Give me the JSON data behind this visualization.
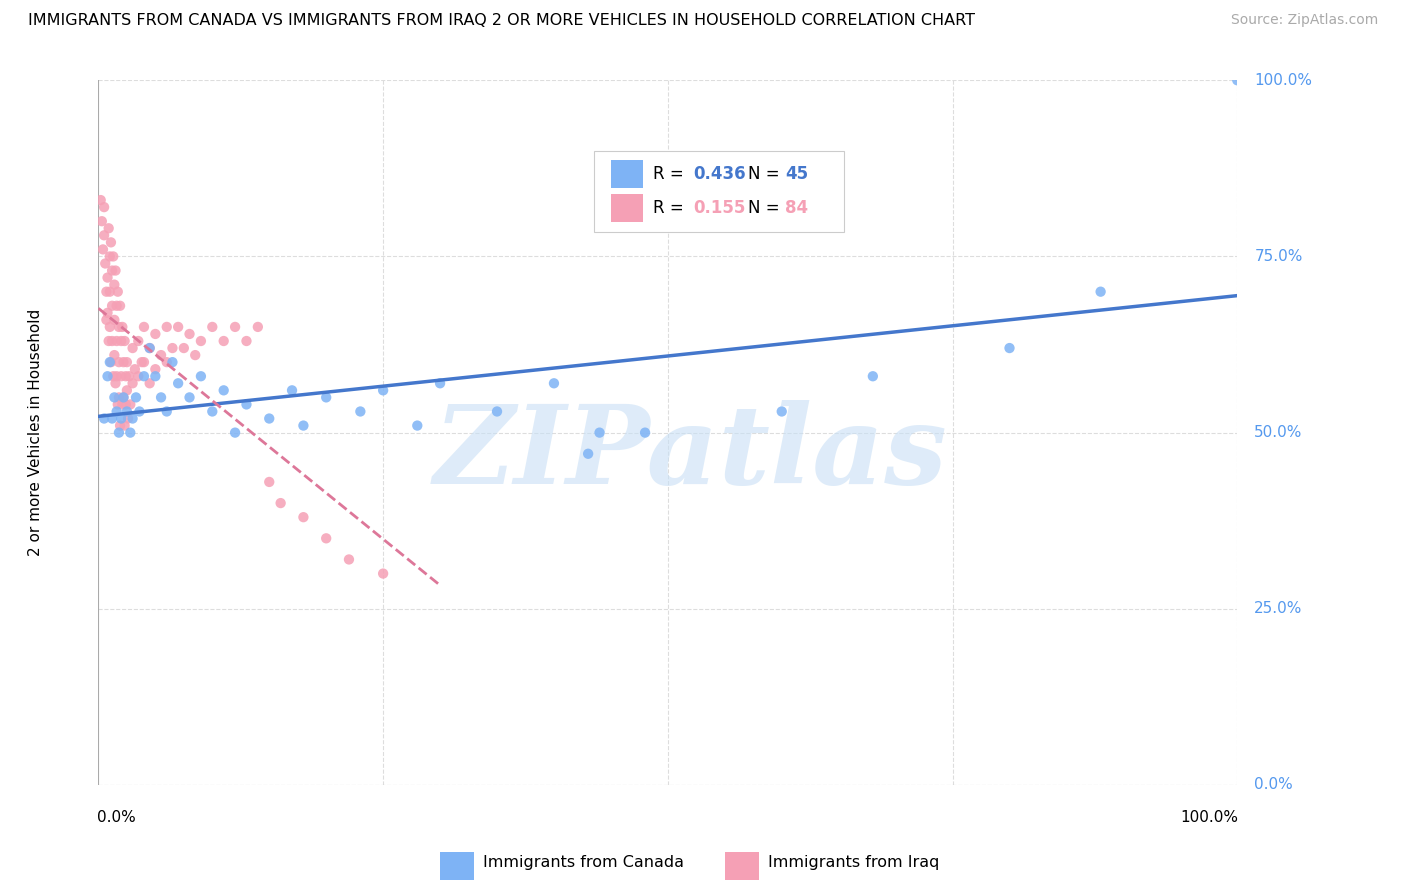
{
  "title": "IMMIGRANTS FROM CANADA VS IMMIGRANTS FROM IRAQ 2 OR MORE VEHICLES IN HOUSEHOLD CORRELATION CHART",
  "source": "Source: ZipAtlas.com",
  "ylabel": "2 or more Vehicles in Household",
  "canada_color": "#7eb3f5",
  "iraq_color": "#f5a0b5",
  "trendline_canada_color": "#4477cc",
  "trendline_iraq_color": "#dd7799",
  "watermark_text": "ZIPatlas",
  "legend_canada_r": "0.436",
  "legend_canada_n": "45",
  "legend_iraq_r": "0.155",
  "legend_iraq_n": "84",
  "right_tick_color": "#5599ee",
  "canada_points": [
    [
      0.005,
      0.52
    ],
    [
      0.008,
      0.58
    ],
    [
      0.01,
      0.6
    ],
    [
      0.012,
      0.52
    ],
    [
      0.014,
      0.55
    ],
    [
      0.016,
      0.53
    ],
    [
      0.018,
      0.5
    ],
    [
      0.02,
      0.52
    ],
    [
      0.022,
      0.55
    ],
    [
      0.025,
      0.53
    ],
    [
      0.028,
      0.5
    ],
    [
      0.03,
      0.52
    ],
    [
      0.033,
      0.55
    ],
    [
      0.036,
      0.53
    ],
    [
      0.04,
      0.58
    ],
    [
      0.045,
      0.62
    ],
    [
      0.05,
      0.58
    ],
    [
      0.055,
      0.55
    ],
    [
      0.06,
      0.53
    ],
    [
      0.065,
      0.6
    ],
    [
      0.07,
      0.57
    ],
    [
      0.08,
      0.55
    ],
    [
      0.09,
      0.58
    ],
    [
      0.1,
      0.53
    ],
    [
      0.11,
      0.56
    ],
    [
      0.12,
      0.5
    ],
    [
      0.13,
      0.54
    ],
    [
      0.15,
      0.52
    ],
    [
      0.17,
      0.56
    ],
    [
      0.18,
      0.51
    ],
    [
      0.2,
      0.55
    ],
    [
      0.23,
      0.53
    ],
    [
      0.25,
      0.56
    ],
    [
      0.28,
      0.51
    ],
    [
      0.3,
      0.57
    ],
    [
      0.35,
      0.53
    ],
    [
      0.4,
      0.57
    ],
    [
      0.43,
      0.47
    ],
    [
      0.44,
      0.5
    ],
    [
      0.48,
      0.5
    ],
    [
      0.6,
      0.53
    ],
    [
      0.68,
      0.58
    ],
    [
      0.8,
      0.62
    ],
    [
      0.88,
      0.7
    ],
    [
      1.0,
      1.0
    ]
  ],
  "iraq_points": [
    [
      0.002,
      0.83
    ],
    [
      0.003,
      0.8
    ],
    [
      0.004,
      0.76
    ],
    [
      0.005,
      0.82
    ],
    [
      0.005,
      0.78
    ],
    [
      0.006,
      0.74
    ],
    [
      0.007,
      0.7
    ],
    [
      0.007,
      0.66
    ],
    [
      0.008,
      0.72
    ],
    [
      0.008,
      0.67
    ],
    [
      0.009,
      0.63
    ],
    [
      0.009,
      0.79
    ],
    [
      0.01,
      0.75
    ],
    [
      0.01,
      0.7
    ],
    [
      0.01,
      0.65
    ],
    [
      0.011,
      0.6
    ],
    [
      0.011,
      0.77
    ],
    [
      0.012,
      0.73
    ],
    [
      0.012,
      0.68
    ],
    [
      0.012,
      0.63
    ],
    [
      0.013,
      0.58
    ],
    [
      0.013,
      0.75
    ],
    [
      0.014,
      0.71
    ],
    [
      0.014,
      0.66
    ],
    [
      0.014,
      0.61
    ],
    [
      0.015,
      0.57
    ],
    [
      0.015,
      0.73
    ],
    [
      0.016,
      0.68
    ],
    [
      0.016,
      0.63
    ],
    [
      0.016,
      0.58
    ],
    [
      0.017,
      0.54
    ],
    [
      0.017,
      0.7
    ],
    [
      0.018,
      0.65
    ],
    [
      0.018,
      0.6
    ],
    [
      0.018,
      0.55
    ],
    [
      0.019,
      0.51
    ],
    [
      0.019,
      0.68
    ],
    [
      0.02,
      0.63
    ],
    [
      0.02,
      0.58
    ],
    [
      0.021,
      0.54
    ],
    [
      0.021,
      0.65
    ],
    [
      0.022,
      0.6
    ],
    [
      0.022,
      0.55
    ],
    [
      0.023,
      0.51
    ],
    [
      0.023,
      0.63
    ],
    [
      0.024,
      0.58
    ],
    [
      0.024,
      0.54
    ],
    [
      0.025,
      0.6
    ],
    [
      0.025,
      0.56
    ],
    [
      0.026,
      0.52
    ],
    [
      0.027,
      0.58
    ],
    [
      0.028,
      0.54
    ],
    [
      0.03,
      0.62
    ],
    [
      0.03,
      0.57
    ],
    [
      0.032,
      0.59
    ],
    [
      0.035,
      0.63
    ],
    [
      0.035,
      0.58
    ],
    [
      0.038,
      0.6
    ],
    [
      0.04,
      0.65
    ],
    [
      0.04,
      0.6
    ],
    [
      0.045,
      0.62
    ],
    [
      0.045,
      0.57
    ],
    [
      0.05,
      0.64
    ],
    [
      0.05,
      0.59
    ],
    [
      0.055,
      0.61
    ],
    [
      0.06,
      0.65
    ],
    [
      0.06,
      0.6
    ],
    [
      0.065,
      0.62
    ],
    [
      0.07,
      0.65
    ],
    [
      0.075,
      0.62
    ],
    [
      0.08,
      0.64
    ],
    [
      0.085,
      0.61
    ],
    [
      0.09,
      0.63
    ],
    [
      0.1,
      0.65
    ],
    [
      0.11,
      0.63
    ],
    [
      0.12,
      0.65
    ],
    [
      0.13,
      0.63
    ],
    [
      0.14,
      0.65
    ],
    [
      0.15,
      0.43
    ],
    [
      0.16,
      0.4
    ],
    [
      0.18,
      0.38
    ],
    [
      0.2,
      0.35
    ],
    [
      0.22,
      0.32
    ],
    [
      0.25,
      0.3
    ]
  ]
}
